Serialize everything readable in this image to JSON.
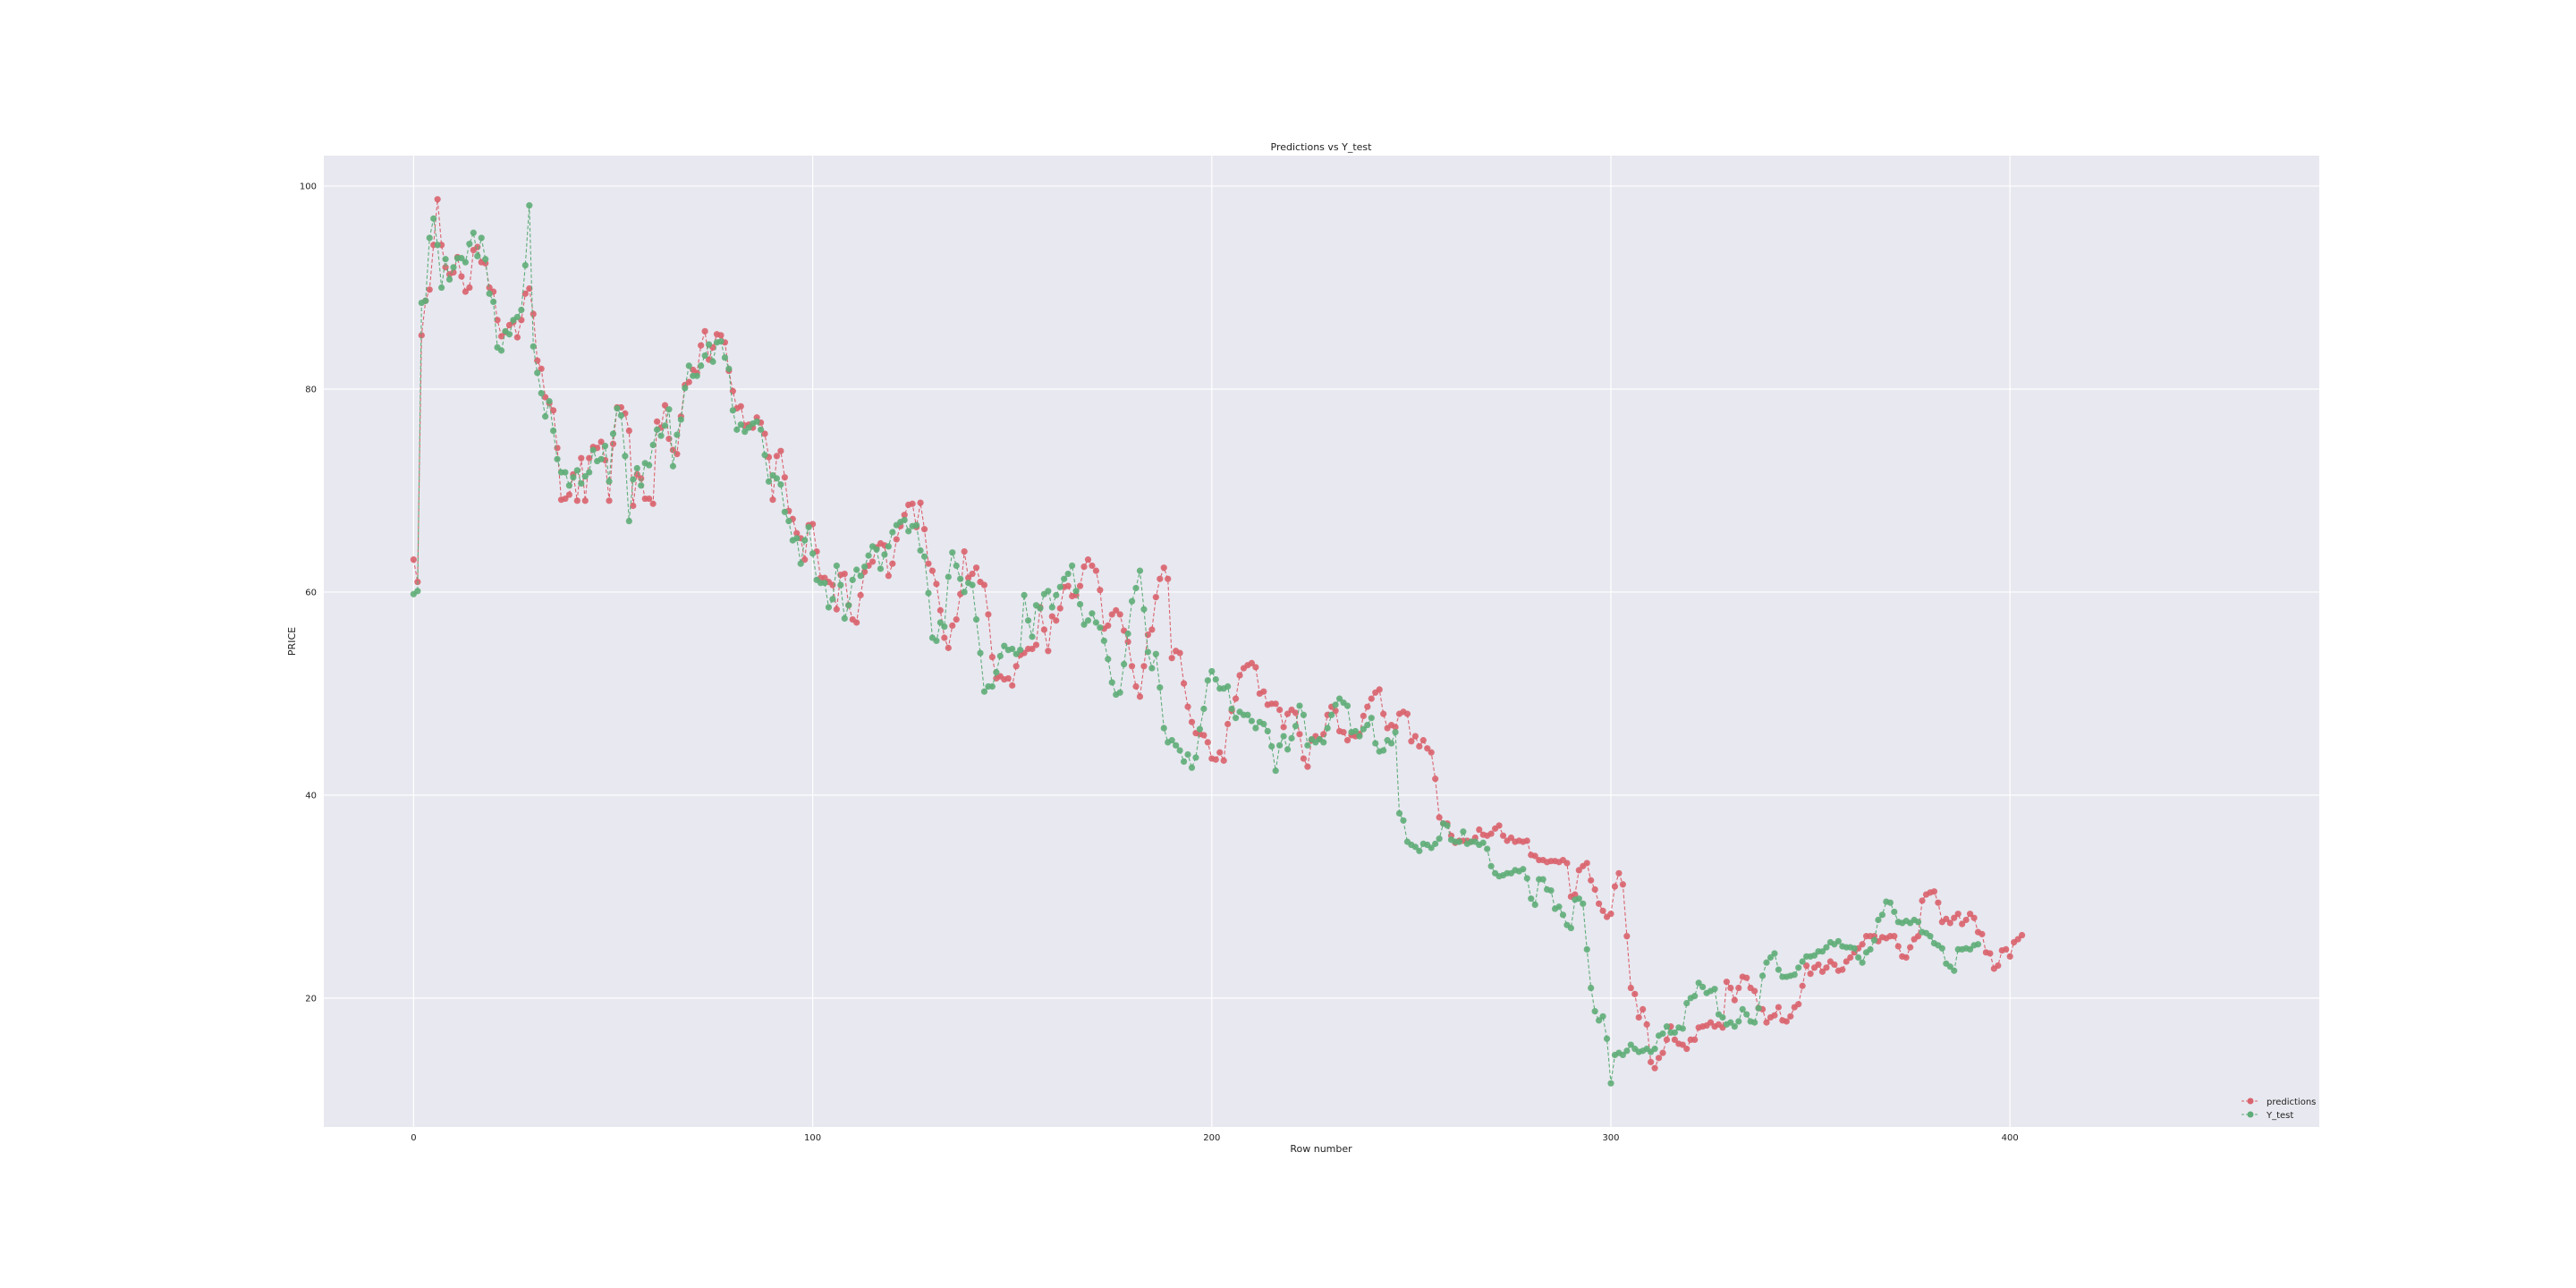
{
  "chart_data": {
    "type": "line",
    "title": "Predictions vs Y_test",
    "xlabel": "Row number",
    "ylabel": "PRICE",
    "xlim": [
      -22.5,
      477.5
    ],
    "ylim": [
      7.3,
      103.0
    ],
    "x_ticks": [
      0,
      100,
      200,
      300,
      400
    ],
    "y_ticks": [
      20,
      40,
      60,
      80,
      100
    ],
    "grid": true,
    "legend_position": "bottom-right",
    "colors": {
      "predictions": "#d9636d",
      "Y_test": "#5fad78",
      "background": "#e8e8f0",
      "grid": "#ffffff"
    },
    "x_start": 0,
    "x_step": 1,
    "series": [
      {
        "name": "predictions",
        "values": [
          63.2,
          61.0,
          85.3,
          88.7,
          89.8,
          94.2,
          98.7,
          94.2,
          92.0,
          91.3,
          91.5,
          93.0,
          91.1,
          89.6,
          90.0,
          93.7,
          94.0,
          92.5,
          92.4,
          90.0,
          89.6,
          86.8,
          85.2,
          85.6,
          86.3,
          86.6,
          85.1,
          86.8,
          89.4,
          89.9,
          87.4,
          82.8,
          82.0,
          79.2,
          78.6,
          77.9,
          74.2,
          69.1,
          69.2,
          69.6,
          71.6,
          69.0,
          73.2,
          69.0,
          73.2,
          74.3,
          74.2,
          74.8,
          73.0,
          69.0,
          74.6,
          78.2,
          78.2,
          77.6,
          75.9,
          68.5,
          71.6,
          71.2,
          69.2,
          69.2,
          68.7,
          76.8,
          76.2,
          78.4,
          75.1,
          74.0,
          73.6,
          77.3,
          80.4,
          80.7,
          81.9,
          81.6,
          84.3,
          85.7,
          82.9,
          84.1,
          85.4,
          85.3,
          84.6,
          81.8,
          79.8,
          78.1,
          78.3,
          76.4,
          76.5,
          76.2,
          77.2,
          76.7,
          75.6,
          73.3,
          69.1,
          73.4,
          73.9,
          71.3,
          68.0,
          67.2,
          65.8,
          65.3,
          63.2,
          66.6,
          66.7,
          64.0,
          61.4,
          61.4,
          61.0,
          60.7,
          58.3,
          61.7,
          61.8,
          58.7,
          57.3,
          57.0,
          59.7,
          62.0,
          62.6,
          63.0,
          64.4,
          64.8,
          64.6,
          61.6,
          62.8,
          65.2,
          66.5,
          67.6,
          68.6,
          68.7,
          66.4,
          68.8,
          66.2,
          62.8,
          62.1,
          60.8,
          58.2,
          55.5,
          54.5,
          56.7,
          57.3,
          59.8,
          64.0,
          61.4,
          61.8,
          62.4,
          61.0,
          60.7,
          57.8,
          53.6,
          51.5,
          51.7,
          51.4,
          51.5,
          50.8,
          52.7,
          53.8,
          54.0,
          54.4,
          54.4,
          54.8,
          58.5,
          56.3,
          54.2,
          57.6,
          57.2,
          58.4,
          60.5,
          60.6,
          59.6,
          59.7,
          60.6,
          62.5,
          63.2,
          62.6,
          62.1,
          60.2,
          56.4,
          56.7,
          57.8,
          58.2,
          57.8,
          56.2,
          55.1,
          52.7,
          50.7,
          49.7,
          52.7,
          55.8,
          56.3,
          59.5,
          61.3,
          62.4,
          61.3,
          53.5,
          54.2,
          54.0,
          51.0,
          48.7,
          47.2,
          46.1,
          46.0,
          45.9,
          45.2,
          43.6,
          43.5,
          44.2,
          43.4,
          47.0,
          48.3,
          49.5,
          51.8,
          52.5,
          52.8,
          53.0,
          52.6,
          50.0,
          50.2,
          48.9,
          49.0,
          49.0,
          48.4,
          46.7,
          48.0,
          48.4,
          48.1,
          46.0,
          43.6,
          42.8,
          45.4,
          45.8,
          45.5,
          46.0,
          47.9,
          48.7,
          48.3,
          46.3,
          46.2,
          45.4,
          45.9,
          45.8,
          46.0,
          47.8,
          48.7,
          49.5,
          50.1,
          50.4,
          48.0,
          46.6,
          46.9,
          46.7,
          48.0,
          48.2,
          48.0,
          45.3,
          45.8,
          44.8,
          45.4,
          44.6,
          44.2,
          41.6,
          37.8,
          37.2,
          37.2,
          36.0,
          35.3,
          35.5,
          35.5,
          35.5,
          35.4,
          35.8,
          36.6,
          36.1,
          36.0,
          36.2,
          36.7,
          37.0,
          36.0,
          35.5,
          35.8,
          35.4,
          35.5,
          35.4,
          35.5,
          34.1,
          34.0,
          33.6,
          33.6,
          33.4,
          33.5,
          33.5,
          33.4,
          33.6,
          33.3,
          30.0,
          30.2,
          32.6,
          33.0,
          33.3,
          31.6,
          30.7,
          29.3,
          28.6,
          28.0,
          28.3,
          31.0,
          32.3,
          31.2,
          26.1,
          21.0,
          20.4,
          18.1,
          18.9,
          17.4,
          13.7,
          13.1,
          14.1,
          14.6,
          15.9,
          17.2,
          15.9,
          15.5,
          15.4,
          15.0,
          15.9,
          15.9,
          17.1,
          17.2,
          17.3,
          17.6,
          17.2,
          17.4,
          17.1,
          21.6,
          21.0,
          19.8,
          21.0,
          22.1,
          22.0,
          21.0,
          20.7,
          19.0,
          18.9,
          17.6,
          18.1,
          18.3,
          19.1,
          17.8,
          17.7,
          18.2,
          19.1,
          19.4,
          21.2,
          23.2,
          22.4,
          23.0,
          23.3,
          22.6,
          23.0,
          23.6,
          23.3,
          22.7,
          22.8,
          23.6,
          24.0,
          24.5,
          24.9,
          25.3,
          26.1,
          26.1,
          26.1,
          25.6,
          26.0,
          25.9,
          26.1,
          26.1,
          25.1,
          24.1,
          24.0,
          25.0,
          25.8,
          26.1,
          29.6,
          30.2,
          30.4,
          30.5,
          29.4,
          27.5,
          27.8,
          27.4,
          27.9,
          28.3,
          27.3,
          27.7,
          28.3,
          27.9,
          26.5,
          26.3,
          24.5,
          24.4,
          22.9,
          23.2,
          24.7,
          24.8,
          24.1,
          25.5,
          25.8,
          26.2
        ]
      },
      {
        "name": "Y_test",
        "values": [
          59.8,
          60.1,
          88.5,
          88.7,
          94.9,
          96.8,
          94.2,
          90.0,
          92.8,
          90.8,
          92.0,
          92.9,
          92.9,
          92.5,
          94.3,
          95.4,
          93.1,
          94.9,
          92.8,
          89.4,
          88.6,
          84.1,
          83.8,
          85.7,
          85.4,
          86.8,
          87.1,
          87.8,
          92.2,
          98.1,
          84.2,
          81.6,
          79.6,
          77.3,
          78.8,
          75.9,
          73.1,
          71.8,
          71.8,
          70.5,
          71.3,
          72.0,
          70.7,
          71.4,
          71.8,
          74.0,
          72.9,
          73.1,
          74.4,
          70.9,
          75.6,
          78.1,
          77.4,
          73.4,
          67.0,
          71.1,
          72.2,
          70.5,
          72.7,
          72.5,
          74.5,
          76.0,
          75.4,
          76.4,
          78.0,
          72.4,
          75.5,
          77.0,
          80.1,
          82.3,
          81.3,
          81.3,
          82.3,
          83.3,
          84.4,
          82.7,
          84.6,
          84.7,
          83.1,
          82.0,
          77.9,
          76.0,
          76.5,
          75.8,
          76.2,
          76.6,
          76.8,
          76.0,
          73.5,
          70.9,
          71.5,
          71.2,
          70.6,
          67.9,
          67.0,
          65.1,
          65.3,
          62.8,
          65.1,
          66.4,
          63.8,
          61.2,
          60.9,
          60.9,
          58.5,
          59.3,
          62.6,
          60.7,
          57.4,
          58.7,
          61.2,
          62.2,
          61.6,
          62.5,
          63.6,
          64.5,
          64.2,
          62.3,
          63.7,
          64.5,
          65.9,
          66.6,
          66.9,
          67.1,
          66.0,
          66.5,
          66.6,
          64.1,
          63.5,
          59.9,
          55.5,
          55.2,
          57.0,
          56.6,
          61.5,
          63.9,
          62.6,
          61.3,
          60.0,
          60.9,
          60.7,
          57.3,
          54.0,
          50.2,
          50.7,
          50.7,
          52.1,
          53.7,
          54.7,
          54.3,
          54.4,
          53.9,
          54.3,
          59.7,
          57.2,
          55.6,
          58.7,
          58.4,
          59.8,
          60.1,
          58.5,
          59.7,
          60.5,
          61.3,
          61.8,
          62.6,
          60.1,
          58.8,
          56.8,
          57.2,
          57.9,
          57.0,
          56.5,
          55.2,
          53.4,
          51.1,
          49.9,
          50.1,
          52.9,
          55.9,
          59.1,
          60.4,
          62.1,
          58.3,
          54.1,
          52.5,
          53.9,
          50.6,
          46.6,
          45.2,
          45.4,
          44.9,
          44.4,
          43.3,
          44.0,
          42.7,
          43.7,
          46.5,
          48.5,
          51.3,
          52.2,
          51.4,
          50.5,
          50.5,
          50.7,
          48.5,
          47.6,
          48.2,
          47.9,
          47.9,
          47.3,
          46.6,
          47.2,
          47.0,
          46.3,
          44.8,
          42.4,
          44.9,
          45.8,
          44.5,
          45.6,
          46.8,
          48.8,
          47.9,
          44.9,
          45.5,
          45.2,
          45.5,
          45.2,
          46.6,
          47.9,
          48.9,
          49.5,
          49.1,
          48.8,
          46.2,
          46.3,
          45.8,
          46.5,
          46.9,
          47.6,
          45.1,
          44.3,
          44.4,
          45.4,
          45.1,
          46.2,
          38.2,
          37.5,
          35.4,
          35.1,
          34.9,
          34.5,
          35.2,
          35.1,
          34.8,
          35.2,
          35.7,
          37.2,
          37.0,
          35.6,
          35.4,
          35.4,
          36.4,
          35.2,
          35.4,
          35.4,
          35.1,
          35.3,
          34.7,
          33.0,
          32.3,
          32.0,
          32.1,
          32.3,
          32.3,
          32.6,
          32.5,
          32.7,
          31.8,
          29.8,
          29.2,
          31.7,
          31.7,
          30.7,
          30.6,
          28.8,
          29.0,
          28.2,
          27.2,
          26.9,
          29.7,
          29.8,
          29.3,
          24.8,
          21.0,
          18.7,
          17.8,
          18.2,
          16.0,
          11.6,
          14.4,
          14.6,
          14.4,
          14.8,
          15.4,
          15.0,
          14.7,
          14.8,
          15.0,
          14.7,
          15.0,
          16.3,
          16.5,
          17.2,
          16.6,
          16.6,
          17.1,
          17.0,
          19.5,
          20.0,
          20.2,
          21.5,
          21.1,
          20.5,
          20.7,
          20.9,
          18.4,
          18.1,
          17.4,
          17.6,
          17.2,
          17.7,
          18.9,
          18.4,
          17.7,
          17.6,
          19.0,
          22.2,
          23.5,
          24.0,
          24.4,
          22.8,
          22.1,
          22.1,
          22.2,
          22.3,
          23.0,
          23.6,
          24.1,
          24.1,
          24.2,
          24.6,
          24.6,
          25.0,
          25.5,
          25.3,
          25.6,
          25.1,
          25.0,
          25.0,
          24.9,
          24.0,
          23.5,
          24.5,
          24.8,
          25.7,
          27.7,
          28.2,
          29.5,
          29.4,
          28.5,
          27.5,
          27.4,
          27.6,
          27.4,
          27.7,
          27.5,
          26.5,
          26.4,
          26.1,
          25.4,
          25.2,
          24.9,
          23.4,
          23.1,
          22.7,
          24.8,
          24.8,
          24.9,
          24.8,
          25.2,
          25.3
        ]
      }
    ]
  }
}
